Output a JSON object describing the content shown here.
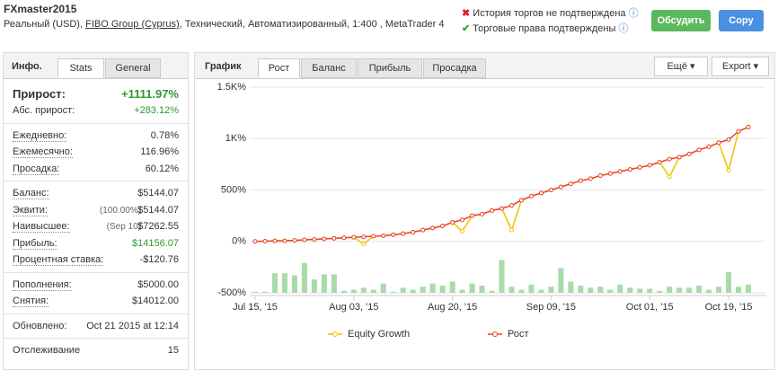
{
  "header": {
    "title": "FXmaster2015",
    "subtitle_start": "Реальный (USD),",
    "broker": "FIBO Group (Cyprus)",
    "subtitle_end": ", Технический, Автоматизированный, 1:400 , MetaTrader 4",
    "status": [
      "История торгов не подтверждена",
      "Торговые права подтверждены"
    ],
    "buttons": [
      "Обсудить",
      "Copy"
    ]
  },
  "info": {
    "title": "Инфо.",
    "tabs": [
      "Stats",
      "General"
    ],
    "groups": [
      [
        {
          "label": "Прирост:",
          "value": "+1111.97%",
          "color": "#2e9a2e"
        },
        {
          "label": "Абс. прирост:",
          "value": "+283.12%",
          "color": "#2e9a2e"
        }
      ],
      [
        {
          "label": "Ежедневно:",
          "value": "0.78%"
        },
        {
          "label": "Ежемесячно:",
          "value": "116.96%"
        },
        {
          "label": "Просадка:",
          "value": "60.12%"
        }
      ],
      [
        {
          "label": "Баланс:",
          "value": "$5144.07"
        },
        {
          "label": "Эквити:",
          "note": "(100.00%)",
          "value": "$5144.07"
        },
        {
          "label": "Наивысшее:",
          "note": "(Sep 10)",
          "value": "$7262.55"
        },
        {
          "label": "Прибыль:",
          "value": "$14156.07",
          "color": "#2e9a2e"
        },
        {
          "label": "Процентная ставка:",
          "value": "-$120.76"
        }
      ],
      [
        {
          "label": "Пополнения:",
          "value": "$5000.00"
        },
        {
          "label": "Снятия:",
          "value": "$14012.00"
        }
      ],
      [
        {
          "label": "Обновлено:",
          "value": "Oct 21 2015 at 12:14"
        }
      ],
      [
        {
          "label": "Отслеживание",
          "value": "15"
        }
      ]
    ]
  },
  "panel": {
    "title": "График",
    "tabs": [
      "Рост",
      "Баланс",
      "Прибыль",
      "Просадка"
    ],
    "menus": [
      "Ещё",
      "Export"
    ]
  },
  "chart_data": {
    "type": "line",
    "categories": [
      "Jul 15, '15",
      null,
      null,
      null,
      null,
      null,
      null,
      null,
      null,
      null,
      "Aug 03, '15",
      null,
      null,
      null,
      null,
      null,
      null,
      null,
      null,
      null,
      "Aug 20, '15",
      null,
      null,
      null,
      null,
      null,
      null,
      null,
      null,
      null,
      "Sep 09, '15",
      null,
      null,
      null,
      null,
      null,
      null,
      null,
      null,
      null,
      "Oct 01, '15",
      null,
      null,
      null,
      null,
      null,
      null,
      null,
      "Oct 19, '15",
      null,
      null
    ],
    "series": [
      {
        "name": "Equity Growth",
        "color": "#f2c100",
        "values": [
          0,
          2,
          5,
          6,
          10,
          15,
          20,
          25,
          30,
          35,
          40,
          -25,
          50,
          55,
          65,
          75,
          90,
          110,
          130,
          150,
          185,
          100,
          250,
          265,
          300,
          320,
          110,
          400,
          440,
          470,
          500,
          530,
          560,
          590,
          610,
          640,
          660,
          680,
          700,
          720,
          740,
          770,
          630,
          820,
          850,
          890,
          920,
          960,
          690,
          1070,
          1111.97
        ]
      },
      {
        "name": "Рост",
        "color": "#e8432c",
        "values": [
          0,
          2,
          5,
          6,
          10,
          15,
          20,
          25,
          30,
          35,
          40,
          45,
          50,
          55,
          65,
          75,
          90,
          110,
          130,
          150,
          185,
          210,
          250,
          265,
          300,
          320,
          350,
          400,
          440,
          470,
          500,
          530,
          560,
          590,
          610,
          640,
          660,
          680,
          700,
          720,
          740,
          770,
          800,
          820,
          850,
          890,
          920,
          960,
          990,
          1070,
          1111.97
        ]
      }
    ],
    "bars": {
      "color": "#a8dba8",
      "values": [
        -490,
        -490,
        -310,
        -310,
        -330,
        -210,
        -370,
        -320,
        -320,
        -480,
        -470,
        -450,
        -470,
        -410,
        -490,
        -450,
        -470,
        -440,
        -410,
        -430,
        -390,
        -470,
        -410,
        -430,
        -480,
        -180,
        -440,
        -470,
        -420,
        -470,
        -440,
        -260,
        -390,
        -430,
        -450,
        -440,
        -470,
        -420,
        -450,
        -460,
        -460,
        -480,
        -440,
        -450,
        -450,
        -430,
        -470,
        -440,
        -300,
        -440,
        -420
      ]
    },
    "ylim": [
      -500,
      1500
    ],
    "yticks": [
      {
        "value": -500,
        "label": "-500%"
      },
      {
        "value": 0,
        "label": "0%"
      },
      {
        "value": 500,
        "label": "500%"
      },
      {
        "value": 1000,
        "label": "1K%"
      },
      {
        "value": 1500,
        "label": "1.5K%"
      }
    ],
    "grid": true
  }
}
